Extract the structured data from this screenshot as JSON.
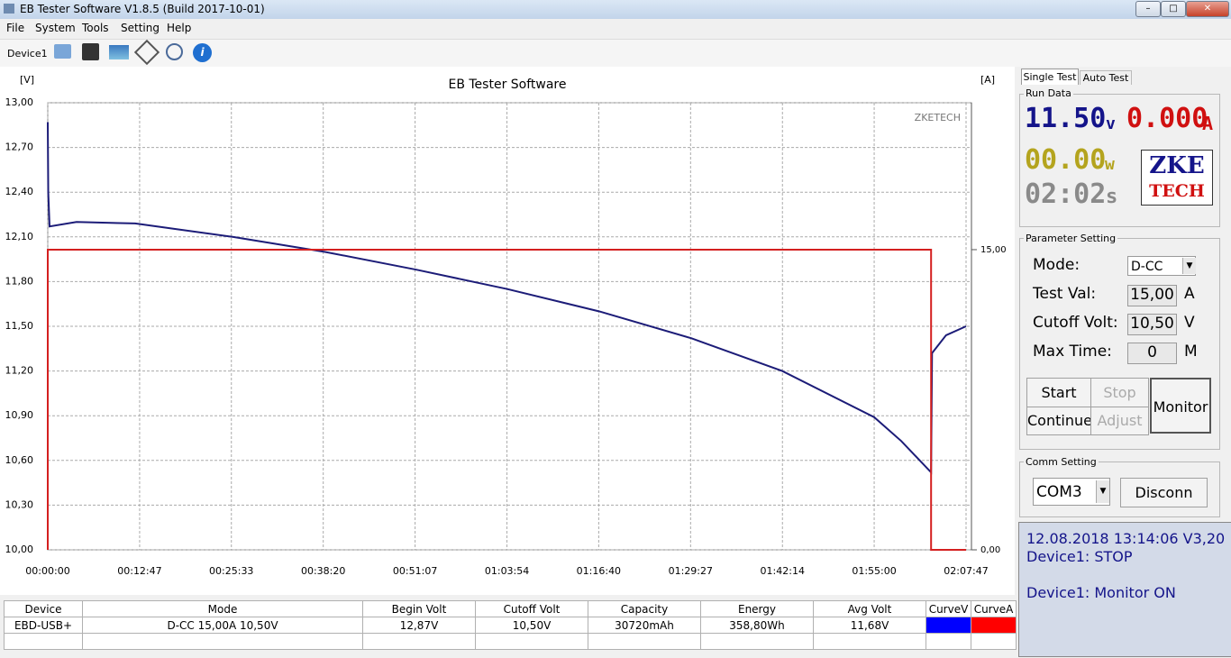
{
  "window": {
    "title": "EB Tester Software V1.8.5 (Build 2017-10-01)"
  },
  "menu": [
    "File",
    "System",
    "Tools",
    "Setting",
    "Help"
  ],
  "toolbar": {
    "device": "Device1"
  },
  "chart_data": {
    "type": "line",
    "title": "EB Tester Software",
    "watermark": "ZKETECH",
    "ylabel": "[V]",
    "y2label": "[A]",
    "xlim": [
      0,
      7667
    ],
    "xticks": [
      {
        "value": 0,
        "label": "00:00:00"
      },
      {
        "value": 767,
        "label": "00:12:47"
      },
      {
        "value": 1533,
        "label": "00:25:33"
      },
      {
        "value": 2300,
        "label": "00:38:20"
      },
      {
        "value": 3067,
        "label": "00:51:07"
      },
      {
        "value": 3834,
        "label": "01:03:54"
      },
      {
        "value": 4600,
        "label": "01:16:40"
      },
      {
        "value": 5367,
        "label": "01:29:27"
      },
      {
        "value": 6134,
        "label": "01:42:14"
      },
      {
        "value": 6900,
        "label": "01:55:00"
      },
      {
        "value": 7667,
        "label": "02:07:47"
      }
    ],
    "ylim": [
      10,
      13
    ],
    "yticks": [
      {
        "value": 10,
        "label": "10,00"
      },
      {
        "value": 10.3,
        "label": "10,30"
      },
      {
        "value": 10.6,
        "label": "10,60"
      },
      {
        "value": 10.9,
        "label": "10,90"
      },
      {
        "value": 11.2,
        "label": "11,20"
      },
      {
        "value": 11.5,
        "label": "11,50"
      },
      {
        "value": 11.8,
        "label": "11,80"
      },
      {
        "value": 12.1,
        "label": "12,10"
      },
      {
        "value": 12.4,
        "label": "12,40"
      },
      {
        "value": 12.7,
        "label": "12,70"
      },
      {
        "value": 13,
        "label": "13,00"
      }
    ],
    "y2lim": [
      0,
      22.34
    ],
    "y2ticks": [
      {
        "value": 0,
        "label": "0,00"
      },
      {
        "value": 15,
        "label": "15,00"
      }
    ],
    "grid": true,
    "series": [
      {
        "color": "#1c1c78",
        "x": [
          0,
          4,
          15,
          240,
          730,
          1543,
          2310,
          3077,
          3837,
          4605,
          5372,
          6132,
          6900,
          7126,
          7375,
          7383,
          7500,
          7667
        ],
        "values": [
          12.87,
          12.4,
          12.17,
          12.2,
          12.19,
          12.1,
          12.0,
          11.88,
          11.75,
          11.6,
          11.42,
          11.2,
          10.89,
          10.73,
          10.52,
          11.32,
          11.44,
          11.5
        ]
      },
      {
        "color": "#d42020",
        "axis": "y2",
        "x": [
          0,
          0,
          7375,
          7375,
          7667
        ],
        "values": [
          0,
          15,
          15,
          0,
          0
        ]
      }
    ]
  },
  "panel": {
    "tabs": [
      "Single Test",
      "Auto Test"
    ],
    "run_data": {
      "title": "Run Data",
      "voltage": "11.50",
      "v_unit": "v",
      "current": "0.000",
      "a_unit": "A",
      "power": "00.00",
      "w_unit": "w",
      "time": "02:02",
      "s_unit": "s",
      "logo_top": "ZKE",
      "logo_bottom": "TECH"
    },
    "parameter": {
      "title": "Parameter Setting",
      "mode_label": "Mode:",
      "mode": "D-CC",
      "test_label": "Test Val:",
      "test_value": "15,00",
      "test_unit": "A",
      "cutoff_label": "Cutoff Volt:",
      "cutoff_value": "10,50",
      "cutoff_unit": "V",
      "max_label": "Max Time:",
      "max_value": "0",
      "max_unit": "M",
      "buttons": [
        "Start",
        "Stop",
        "Continue",
        "Adjust",
        "Monitor"
      ]
    },
    "comm": {
      "title": "Comm Setting",
      "port": "COM3",
      "button": "Disconn"
    },
    "status": [
      "12.08.2018 13:14:06  V3,20",
      "Device1: STOP",
      "Device1: Monitor ON"
    ]
  },
  "table": {
    "headers": [
      "Device",
      "Mode",
      "Begin Volt",
      "Cutoff Volt",
      "Capacity",
      "Energy",
      "Avg Volt",
      "CurveV",
      "CurveA"
    ],
    "rows": [
      [
        "EBD-USB+",
        "D-CC 15,00A  10,50V",
        "12,87V",
        "10,50V",
        "30720mAh",
        "358,80Wh",
        "11,68V"
      ]
    ],
    "curve_colors": [
      "#0000ff",
      "#ff0000"
    ]
  }
}
